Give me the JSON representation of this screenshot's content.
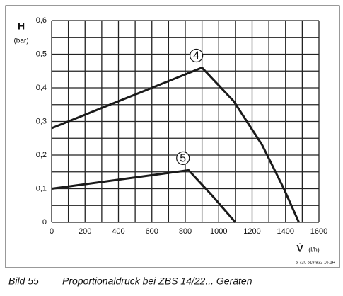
{
  "chart_data": {
    "type": "line",
    "y_label": "H",
    "y_unit": "(bar)",
    "x_label": "V̇",
    "x_unit": "(l/h)",
    "series": [
      {
        "name": "4",
        "color": "#1a1a1a",
        "x": [
          0,
          900,
          1090,
          1260,
          1390,
          1480
        ],
        "values": [
          0.28,
          0.46,
          0.36,
          0.23,
          0.1,
          0
        ]
      },
      {
        "name": "5",
        "color": "#1a1a1a",
        "x": [
          0,
          820,
          960,
          1100
        ],
        "values": [
          0.1,
          0.155,
          0.08,
          0
        ]
      }
    ],
    "xlim": [
      0,
      1600
    ],
    "ylim": [
      0,
      0.6
    ],
    "xticks": [
      0,
      200,
      400,
      600,
      800,
      1000,
      1200,
      1400,
      1600
    ],
    "yticks": [
      0,
      {
        "value": 0.1,
        "label": "0,1"
      },
      {
        "value": 0.2,
        "label": "0,2"
      },
      {
        "value": 0.3,
        "label": "0,3"
      },
      {
        "value": 0.4,
        "label": "0,4"
      },
      {
        "value": 0.5,
        "label": "0,5"
      },
      {
        "value": 0.6,
        "label": "0,6"
      }
    ],
    "xgrid": [
      0,
      100,
      200,
      300,
      400,
      500,
      600,
      700,
      800,
      900,
      1000,
      1100,
      1200,
      1300,
      1400,
      1500,
      1600
    ],
    "ygrid": [
      0,
      0.05,
      0.1,
      0.15,
      0.2,
      0.25,
      0.3,
      0.35,
      0.4,
      0.45,
      0.5,
      0.55,
      0.6
    ],
    "figure_code": "6 720 618 832 16.1R",
    "caption_number": "Bild 55",
    "caption": "Proportionaldruck bei ZBS 14/22... Geräten"
  }
}
